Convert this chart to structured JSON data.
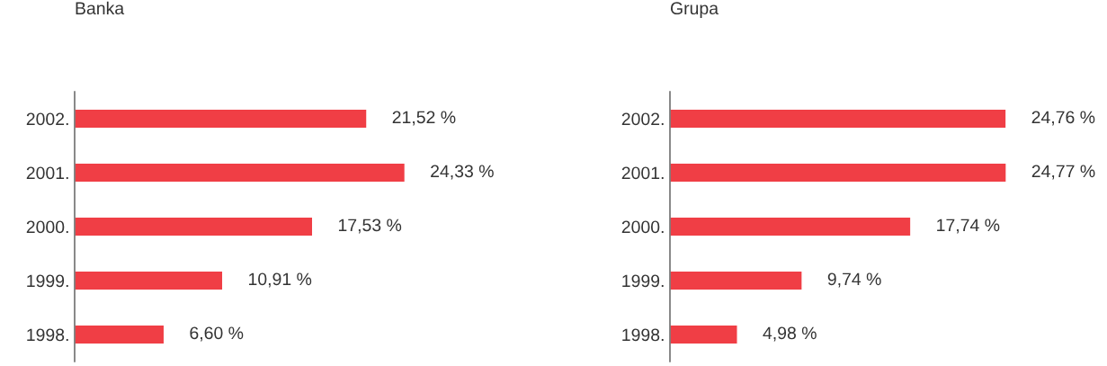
{
  "chart_data": [
    {
      "type": "bar",
      "orientation": "horizontal",
      "title": "Banka",
      "categories": [
        "2002.",
        "2001.",
        "2000.",
        "1999.",
        "1998."
      ],
      "values": [
        21.52,
        24.33,
        17.53,
        10.91,
        6.6
      ],
      "color": "#f03e45",
      "value_labels": [
        "21,52 %",
        "24,33 %",
        "17,53 %",
        "10,91 %",
        "6,60 %"
      ],
      "tick_labels": "y",
      "grid": false,
      "legend": false
    },
    {
      "type": "bar",
      "orientation": "horizontal",
      "title": "Grupa",
      "categories": [
        "2002.",
        "2001.",
        "2000.",
        "1999.",
        "1998."
      ],
      "values": [
        24.76,
        24.77,
        17.74,
        9.74,
        4.98
      ],
      "color": "#f03e45",
      "value_labels": [
        "24,76 %",
        "24,77 %",
        "17,74 %",
        "9,74 %",
        "4,98 %"
      ],
      "tick_labels": "y",
      "grid": false,
      "legend": false
    }
  ]
}
